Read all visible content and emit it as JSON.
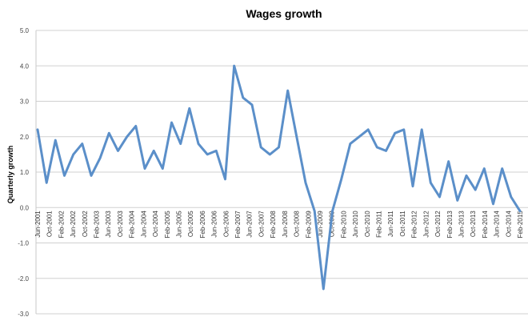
{
  "chart_data": {
    "type": "line",
    "title": "Wages growth",
    "xlabel": "",
    "ylabel": "Quarterly growth",
    "ylim": [
      -3.0,
      5.0
    ],
    "ytick_labels": [
      "5.0",
      "4.0",
      "3.0",
      "2.0",
      "1.0",
      "0.0",
      "-1.0",
      "-2.0",
      "-3.0"
    ],
    "yticks": [
      5,
      4,
      3,
      2,
      1,
      0,
      -1,
      -2,
      -3
    ],
    "grid": true,
    "legend": "none",
    "line_color": "#5b8fc9",
    "xtick_labels": [
      "Jun-2001",
      "Oct-2001",
      "Feb-2002",
      "Jun-2002",
      "Oct-2002",
      "Feb-2003",
      "Jun-2003",
      "Oct-2003",
      "Feb-2004",
      "Jun-2004",
      "Oct-2004",
      "Feb-2005",
      "Jun-2005",
      "Oct-2005",
      "Feb-2006",
      "Jun-2006",
      "Oct-2006",
      "Feb-2007",
      "Jun-2007",
      "Oct-2007",
      "Feb-2008",
      "Jun-2008",
      "Oct-2008",
      "Feb-2009",
      "Jun-2009",
      "Oct-2009",
      "Feb-2010",
      "Jun-2010",
      "Oct-2010",
      "Feb-2011",
      "Jun-2011",
      "Oct-2011",
      "Feb-2012",
      "Jun-2012",
      "Oct-2012",
      "Feb-2013",
      "Jun-2013",
      "Oct-2013",
      "Feb-2014",
      "Jun-2014",
      "Oct-2014",
      "Feb-2015"
    ],
    "values": [
      2.2,
      0.7,
      1.9,
      0.9,
      1.5,
      1.8,
      0.9,
      1.4,
      2.1,
      1.6,
      2.0,
      2.3,
      1.1,
      1.6,
      1.1,
      2.4,
      1.8,
      2.8,
      1.8,
      1.5,
      1.6,
      0.8,
      4.0,
      3.1,
      2.9,
      1.7,
      1.5,
      1.7,
      3.3,
      2.0,
      0.7,
      -0.1,
      -2.3,
      -0.1,
      0.8,
      1.8,
      2.0,
      2.2,
      1.7,
      1.6,
      2.1,
      2.2,
      0.6,
      2.2,
      0.7,
      0.3,
      1.3,
      0.2,
      0.9,
      0.5,
      1.1,
      0.1,
      1.1,
      0.3,
      -0.1
    ]
  }
}
